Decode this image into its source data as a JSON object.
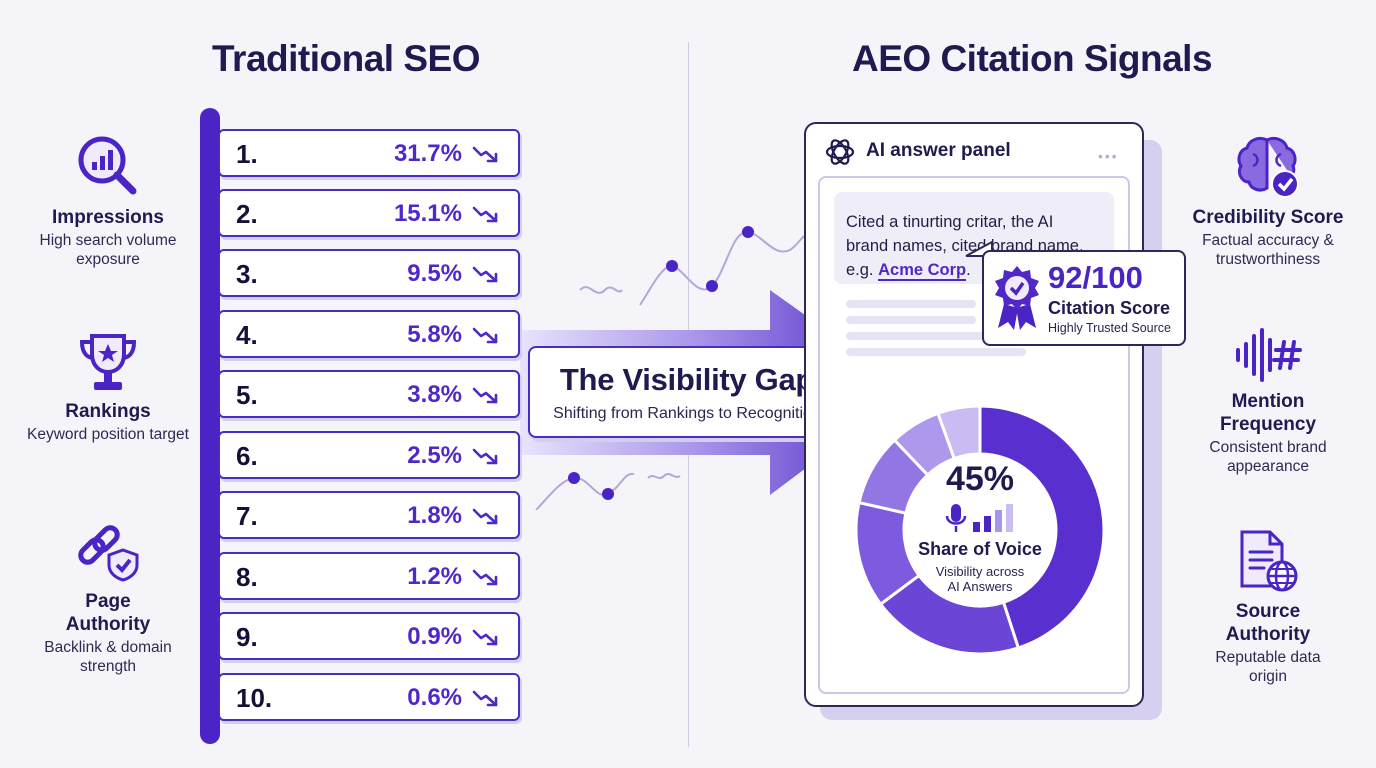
{
  "left": {
    "title": "Traditional SEO",
    "metrics": [
      {
        "title": "Impressions",
        "desc": "High search volume exposure",
        "icon": "magnifier-chart-icon"
      },
      {
        "title": "Rankings",
        "desc": "Keyword position target",
        "icon": "trophy-icon"
      },
      {
        "title": "Page Authority",
        "desc": "Backlink & domain strength",
        "icon": "link-shield-icon"
      }
    ]
  },
  "right": {
    "title": "AEO Citation Signals",
    "metrics": [
      {
        "title": "Credibility Score",
        "desc": "Factual accuracy & trustworthiness",
        "icon": "brain-check-icon"
      },
      {
        "title": "Mention Frequency",
        "desc": "Consistent brand appearance",
        "icon": "sound-hashtag-icon"
      },
      {
        "title": "Source Authority",
        "desc": "Reputable data origin",
        "icon": "document-globe-icon"
      }
    ]
  },
  "rankings": [
    {
      "rank": "1.",
      "ctr": "31.7%"
    },
    {
      "rank": "2.",
      "ctr": "15.1%"
    },
    {
      "rank": "3.",
      "ctr": "9.5%"
    },
    {
      "rank": "4.",
      "ctr": "5.8%"
    },
    {
      "rank": "5.",
      "ctr": "3.8%"
    },
    {
      "rank": "6.",
      "ctr": "2.5%"
    },
    {
      "rank": "7.",
      "ctr": "1.8%"
    },
    {
      "rank": "8.",
      "ctr": "1.2%"
    },
    {
      "rank": "9.",
      "ctr": "0.9%"
    },
    {
      "rank": "10.",
      "ctr": "0.6%"
    }
  ],
  "gap": {
    "title": "The Visibility Gap",
    "subtitle": "Shifting from Rankings to Recognition"
  },
  "panel": {
    "title": "AI answer panel",
    "dots": "•••",
    "answer_lines": [
      "Cited a tinurting critar, the AI",
      "brand names, cited brand name,"
    ],
    "example_prefix": "e.g. ",
    "example_brand": "Acme Corp",
    "example_suffix": "."
  },
  "score": {
    "value": "92/100",
    "label": "Citation Score",
    "sub": "Highly Trusted Source"
  },
  "share_of_voice": {
    "value": "45%",
    "label": "Share of Voice",
    "sub_lines": [
      "Visibility across",
      "AI Answers"
    ],
    "fraction": 0.45
  },
  "colors": {
    "primary": "#4a24c4",
    "accent": "#5128c8",
    "heading": "#1f1a4f",
    "light": "#efedf8"
  }
}
